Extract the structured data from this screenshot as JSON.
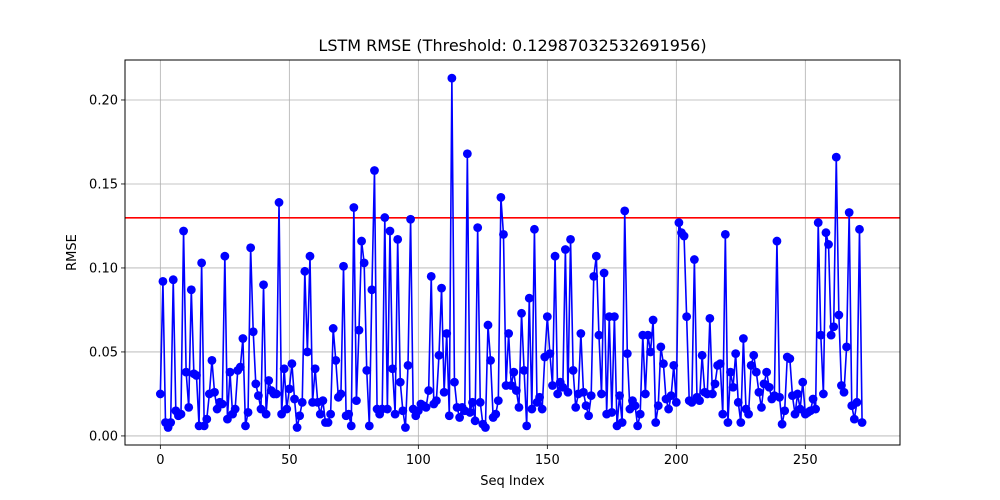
{
  "chart_data": {
    "type": "line",
    "title": "LSTM RMSE (Threshold: 0.12987032532691956)",
    "xlabel": "Seq Index",
    "ylabel": "RMSE",
    "xlim": [
      -13.7,
      286.7
    ],
    "ylim": [
      -0.0054,
      0.2238
    ],
    "xticks": [
      0,
      50,
      100,
      150,
      200,
      250
    ],
    "yticks": [
      0.0,
      0.05,
      0.1,
      0.15,
      0.2
    ],
    "ytick_labels": [
      "0.00",
      "0.05",
      "0.10",
      "0.15",
      "0.20"
    ],
    "grid": true,
    "threshold": 0.12987032532691956,
    "line_color": "#0000ff",
    "threshold_color": "#ff0000",
    "series": [
      {
        "values": [
          0.025,
          0.092,
          0.008,
          0.005,
          0.008,
          0.093,
          0.015,
          0.012,
          0.013,
          0.122,
          0.038,
          0.017,
          0.087,
          0.037,
          0.036,
          0.006,
          0.103,
          0.006,
          0.01,
          0.025,
          0.045,
          0.026,
          0.016,
          0.02,
          0.019,
          0.107,
          0.01,
          0.038,
          0.013,
          0.016,
          0.039,
          0.041,
          0.058,
          0.006,
          0.014,
          0.112,
          0.062,
          0.031,
          0.024,
          0.016,
          0.09,
          0.013,
          0.033,
          0.027,
          0.025,
          0.025,
          0.139,
          0.013,
          0.04,
          0.016,
          0.028,
          0.043,
          0.022,
          0.005,
          0.012,
          0.02,
          0.098,
          0.05,
          0.107,
          0.02,
          0.04,
          0.02,
          0.013,
          0.021,
          0.008,
          0.008,
          0.013,
          0.064,
          0.045,
          0.023,
          0.025,
          0.101,
          0.012,
          0.013,
          0.006,
          0.136,
          0.021,
          0.063,
          0.116,
          0.103,
          0.039,
          0.006,
          0.087,
          0.158,
          0.016,
          0.013,
          0.016,
          0.13,
          0.016,
          0.122,
          0.04,
          0.013,
          0.117,
          0.032,
          0.015,
          0.005,
          0.042,
          0.129,
          0.016,
          0.012,
          0.015,
          0.019,
          0.018,
          0.017,
          0.027,
          0.095,
          0.019,
          0.021,
          0.048,
          0.088,
          0.026,
          0.061,
          0.012,
          0.213,
          0.032,
          0.017,
          0.011,
          0.017,
          0.015,
          0.168,
          0.014,
          0.02,
          0.009,
          0.124,
          0.02,
          0.007,
          0.005,
          0.066,
          0.045,
          0.011,
          0.013,
          0.021,
          0.142,
          0.12,
          0.03,
          0.061,
          0.03,
          0.038,
          0.027,
          0.017,
          0.073,
          0.039,
          0.006,
          0.082,
          0.016,
          0.123,
          0.02,
          0.023,
          0.016,
          0.047,
          0.071,
          0.049,
          0.03,
          0.107,
          0.025,
          0.032,
          0.029,
          0.111,
          0.026,
          0.117,
          0.039,
          0.017,
          0.025,
          0.061,
          0.026,
          0.018,
          0.012,
          0.024,
          0.095,
          0.107,
          0.06,
          0.025,
          0.097,
          0.013,
          0.071,
          0.014,
          0.071,
          0.006,
          0.024,
          0.008,
          0.134,
          0.049,
          0.016,
          0.021,
          0.018,
          0.006,
          0.013,
          0.06,
          0.025,
          0.06,
          0.05,
          0.069,
          0.008,
          0.018,
          0.053,
          0.043,
          0.022,
          0.016,
          0.024,
          0.042,
          0.02,
          0.127,
          0.121,
          0.119,
          0.071,
          0.021,
          0.02,
          0.105,
          0.023,
          0.021,
          0.048,
          0.026,
          0.025,
          0.07,
          0.025,
          0.031,
          0.042,
          0.043,
          0.013,
          0.12,
          0.008,
          0.038,
          0.029,
          0.049,
          0.02,
          0.008,
          0.058,
          0.016,
          0.013,
          0.042,
          0.048,
          0.038,
          0.026,
          0.017,
          0.031,
          0.038,
          0.029,
          0.022,
          0.024,
          0.116,
          0.023,
          0.007,
          0.015,
          0.047,
          0.046,
          0.024,
          0.013,
          0.025,
          0.016,
          0.032,
          0.013,
          0.014,
          0.015,
          0.022,
          0.016,
          0.127,
          0.06,
          0.025,
          0.121,
          0.114,
          0.06,
          0.065,
          0.166,
          0.072,
          0.03,
          0.026,
          0.053,
          0.133,
          0.018,
          0.01,
          0.02,
          0.123,
          0.008
        ]
      }
    ]
  }
}
